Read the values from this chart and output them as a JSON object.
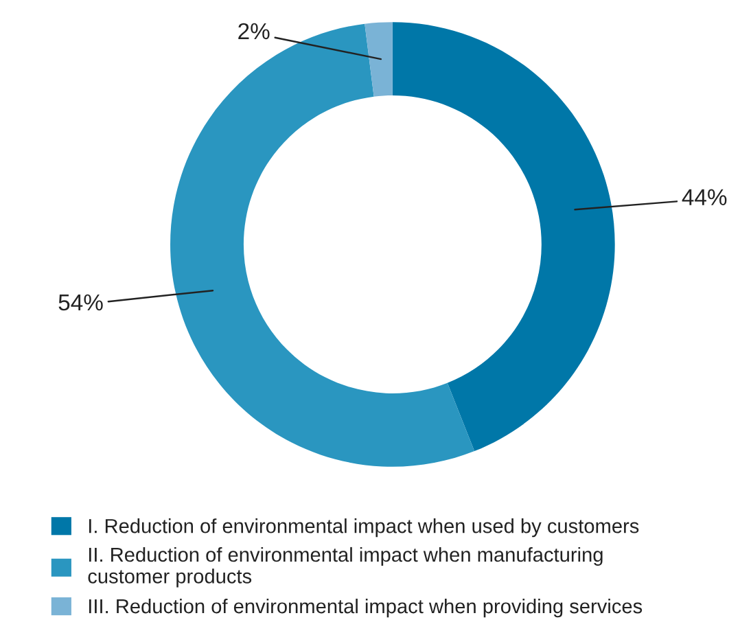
{
  "chart_data": {
    "type": "donut",
    "categories": [
      "I. Reduction of environmental impact when used by customers",
      "II. Reduction of environmental impact when manufacturing\ncustomer products",
      "III. Reduction of environmental impact when providing services"
    ],
    "values": [
      44,
      54,
      2
    ],
    "colors": [
      "#0077a8",
      "#2a96c0",
      "#7ab3d6"
    ],
    "value_labels": [
      "44%",
      "54%",
      "2%"
    ],
    "legend": "bottom"
  }
}
